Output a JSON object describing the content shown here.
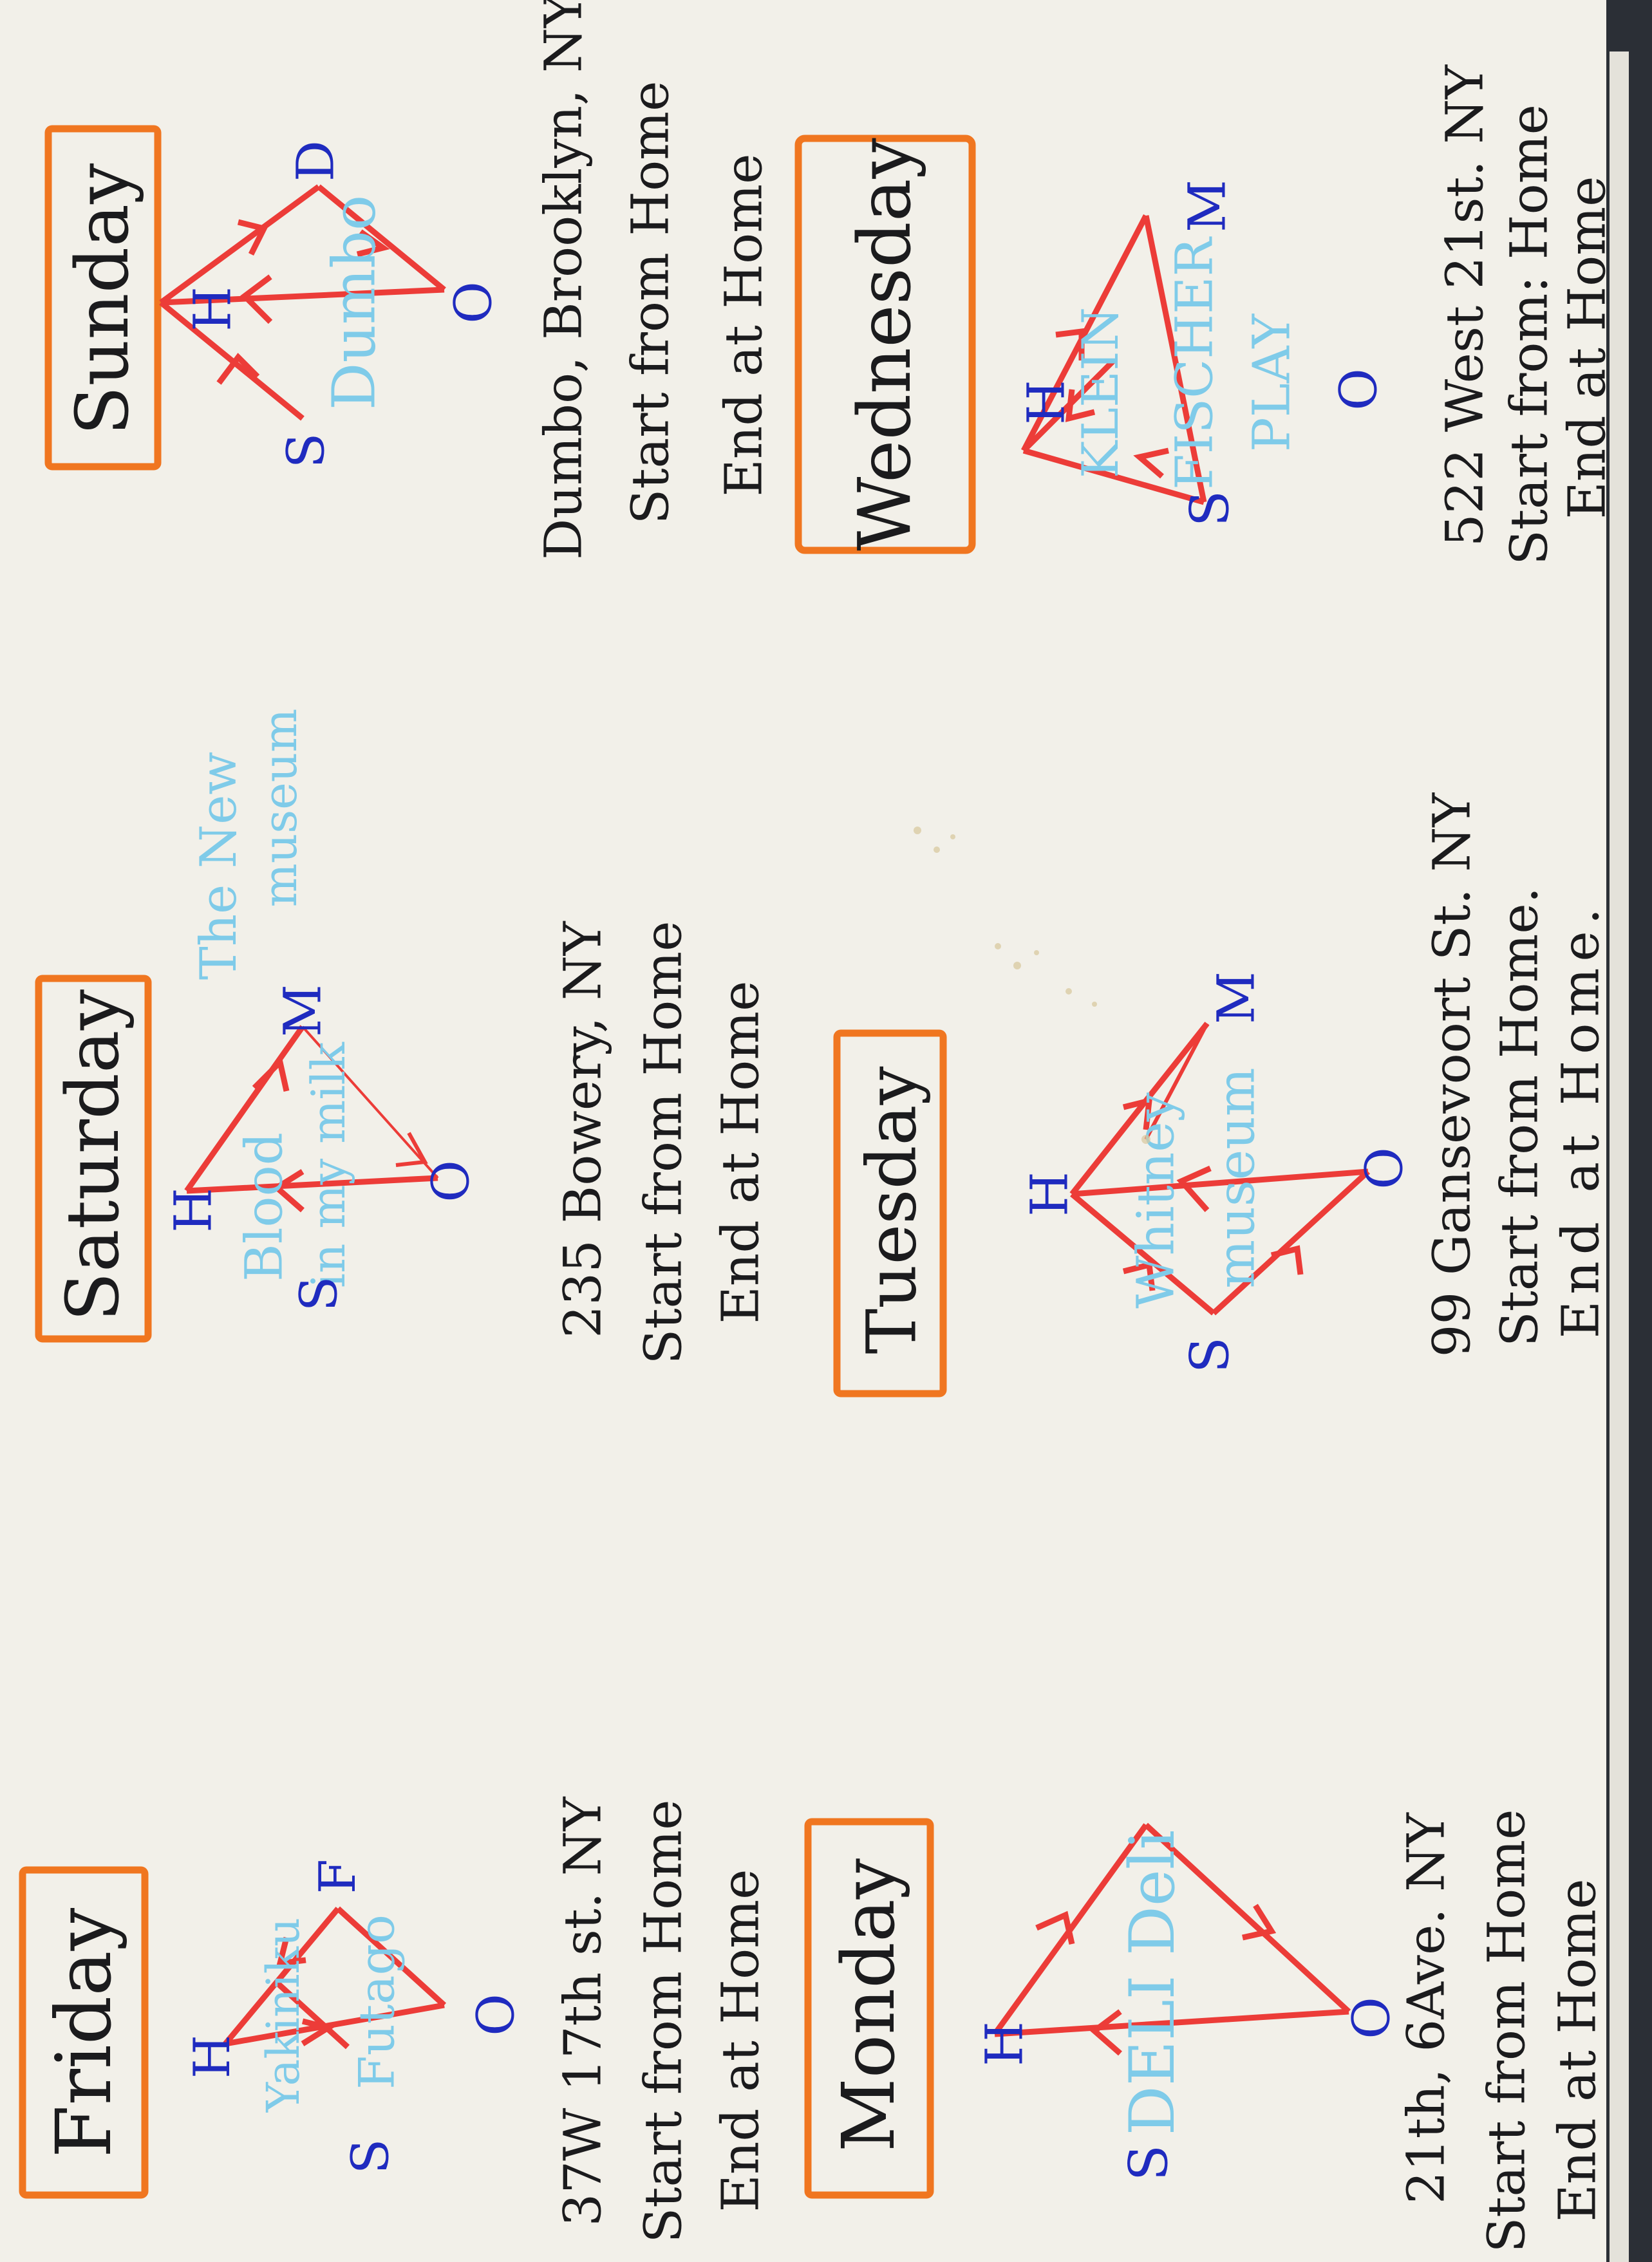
{
  "colors": {
    "paper": "#f2f0e9",
    "orange_box": "#f07620",
    "black_ink": "#1b1b1d",
    "blue_ink": "#1f2bbf",
    "light_blue": "#7fcbe9",
    "red_ink": "#ec3c38"
  },
  "days": [
    {
      "id": "friday",
      "label": "Friday",
      "lines": [
        "37W 17th st. NY",
        "Start from Home",
        "End at Home"
      ],
      "nodes": {
        "h": "H",
        "s": "S",
        "o": "O",
        "f": "F"
      },
      "place_text": [
        "Yakiniku",
        "Futago"
      ]
    },
    {
      "id": "saturday",
      "label": "Saturday",
      "lines": [
        "235 Bowery, NY",
        "Start from Home",
        "End at Home"
      ],
      "nodes": {
        "h": "H",
        "s": "S",
        "o": "O",
        "m": "M"
      },
      "place_text": [
        "Blood",
        "in my milk",
        "The New",
        "museum"
      ]
    },
    {
      "id": "sunday",
      "label": "Sunday",
      "lines": [
        "Dumbo, Brooklyn, NY",
        "Start from Home",
        "End at Home"
      ],
      "nodes": {
        "h": "H",
        "s": "S",
        "o": "O",
        "d": "D"
      },
      "place_text": [
        "Dumbo"
      ]
    },
    {
      "id": "monday",
      "label": "Monday",
      "lines": [
        "21th, 6Ave. NY",
        "Start from Home",
        "End at Home"
      ],
      "nodes": {
        "h": "H",
        "s": "S",
        "o": "O"
      },
      "place_text": [
        "DELI Deli"
      ]
    },
    {
      "id": "tuesday",
      "label": "Tuesday",
      "lines": [
        "99 Gansevoort St. NY",
        "Start from Home.",
        "End at Home."
      ],
      "nodes": {
        "h": "H",
        "s": "S",
        "o": "O",
        "m": "M"
      },
      "place_text": [
        "Whitney",
        "museum"
      ]
    },
    {
      "id": "wednesday",
      "label": "Wednesday",
      "lines": [
        "522 West 21st. NY",
        "Start from: Home",
        "End at Home"
      ],
      "nodes": {
        "h": "H",
        "s": "S",
        "o": "O",
        "m": "M"
      },
      "place_text": [
        "KLEIN",
        "FISCHER",
        "PLAY"
      ]
    }
  ]
}
